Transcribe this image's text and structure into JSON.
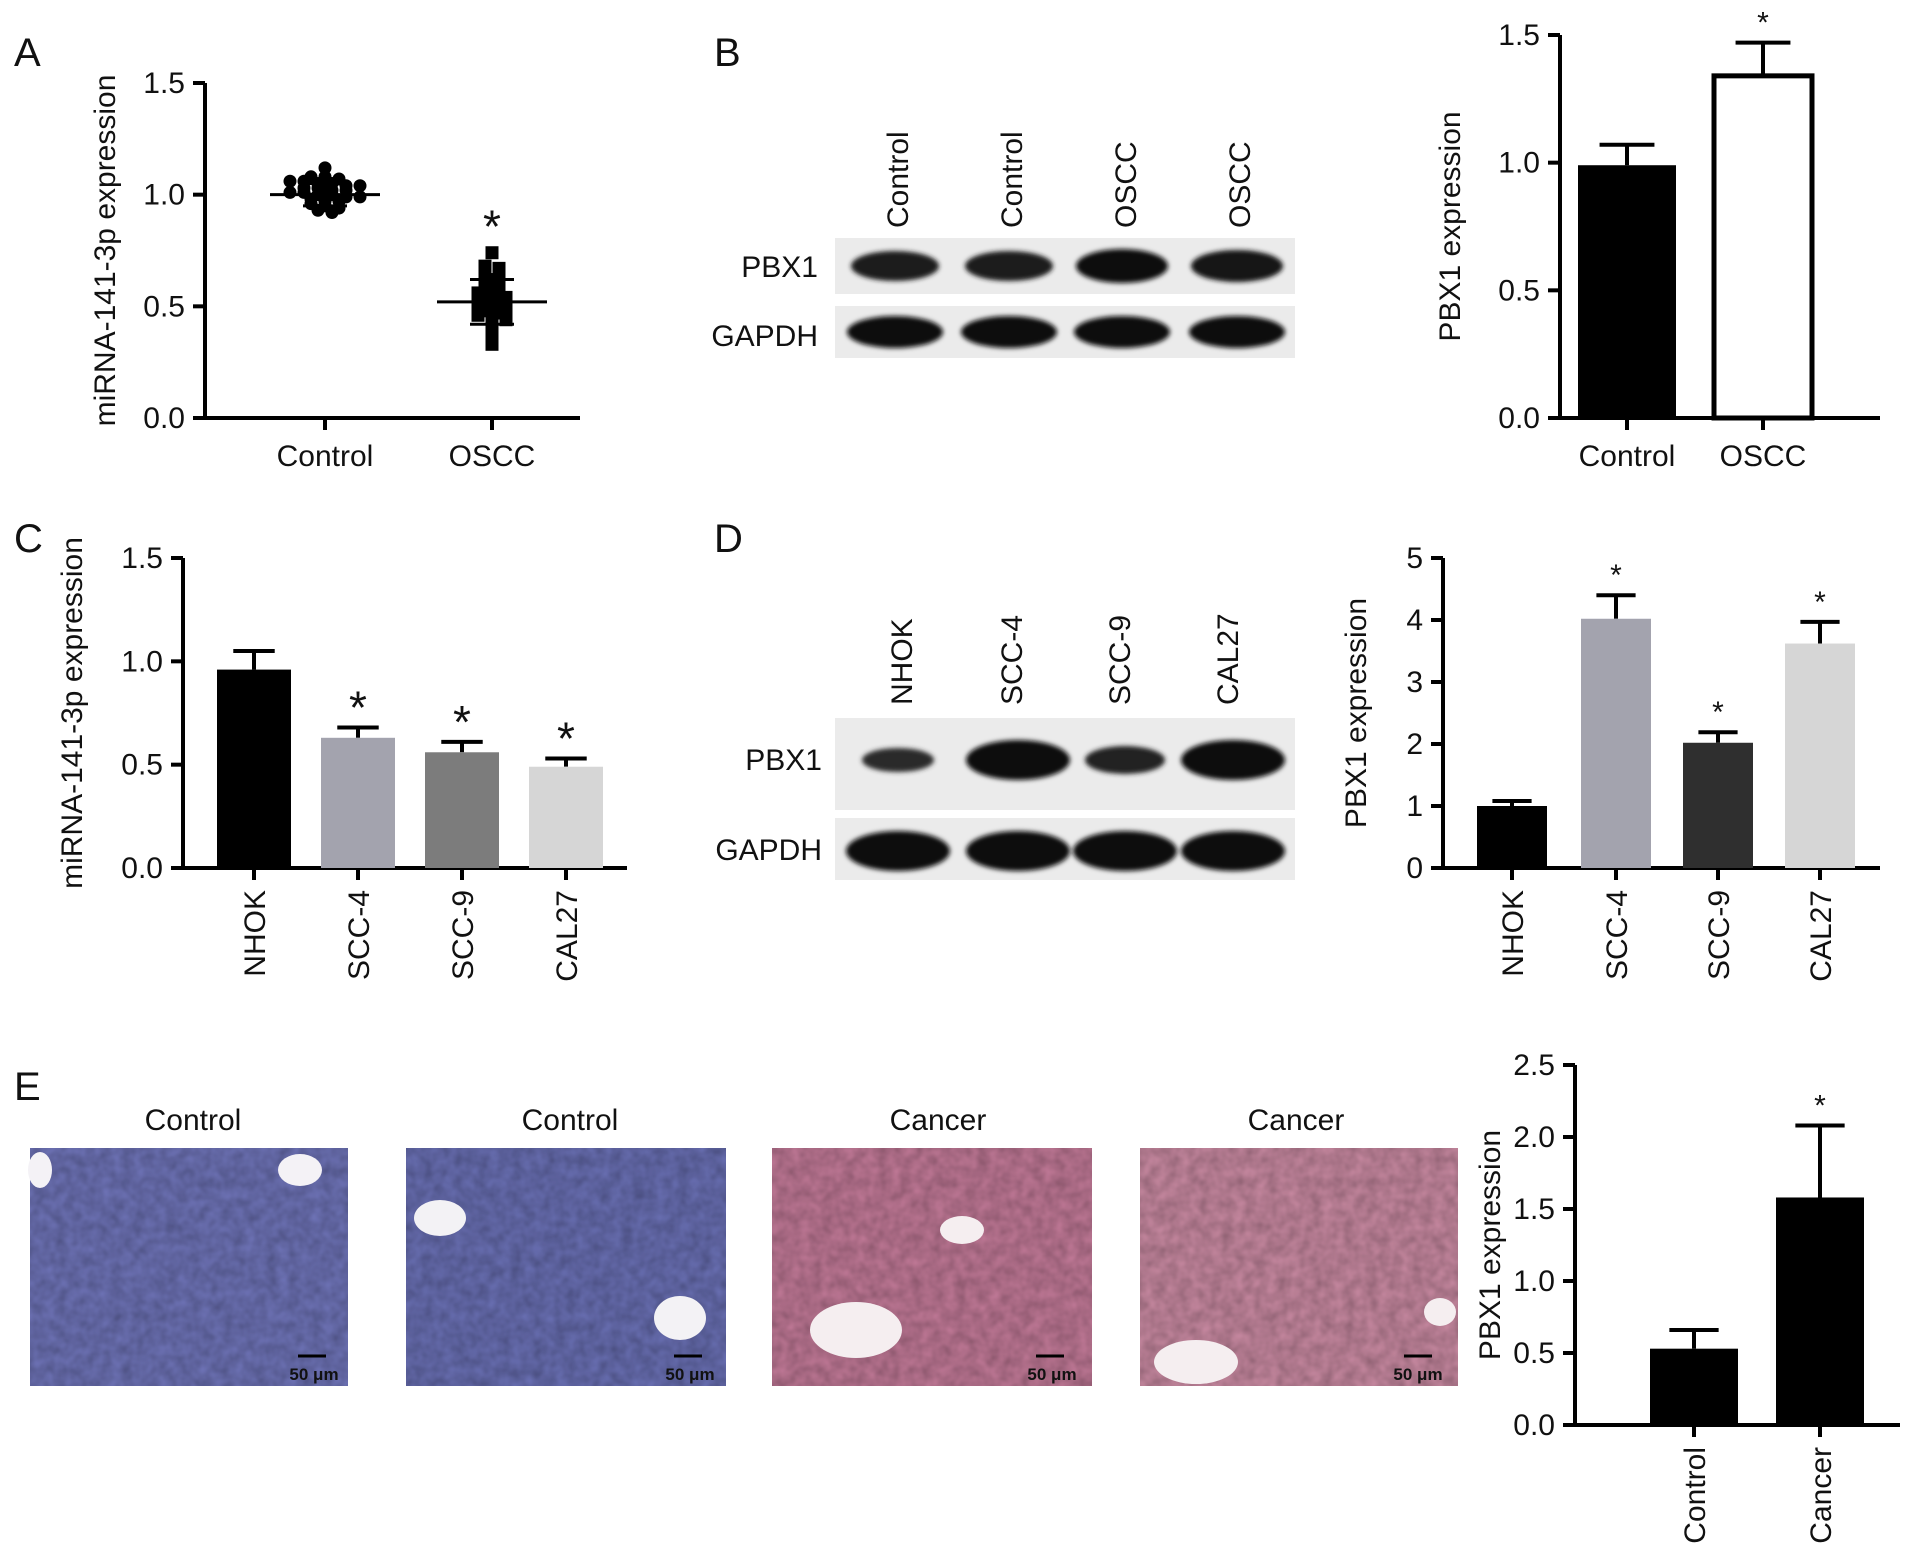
{
  "panel_letters": [
    "A",
    "B",
    "C",
    "D",
    "E"
  ],
  "blots": {
    "B": {
      "lanes": [
        "Control",
        "Control",
        "OSCC",
        "OSCC"
      ],
      "rows": [
        "PBX1",
        "GAPDH"
      ]
    },
    "D": {
      "lanes": [
        "NHOK",
        "SCC-4",
        "SCC-9",
        "CAL27"
      ],
      "rows": [
        "PBX1",
        "GAPDH"
      ]
    }
  },
  "histology": {
    "titles": [
      "Control",
      "Control",
      "Cancer",
      "Cancer"
    ],
    "scale_bar": "50 μm",
    "stain_colors": [
      "#6f74b8",
      "#6a70b4",
      "#c27a98",
      "#c98aa2"
    ]
  },
  "chart_data": [
    {
      "panel": "A",
      "type": "scatter",
      "title": "",
      "xlabel": "",
      "ylabel": "miRNA-141-3p expression",
      "categories": [
        "Control",
        "OSCC"
      ],
      "ylim": [
        0,
        1.5
      ],
      "yticks": [
        "0.0",
        "0.5",
        "1.0",
        "1.5"
      ],
      "series": [
        {
          "category": "Control",
          "mean": 1.0,
          "sd": 0.05,
          "values": [
            1.12,
            1.08,
            1.08,
            1.07,
            1.06,
            1.06,
            1.05,
            1.05,
            1.04,
            1.04,
            1.03,
            1.03,
            1.02,
            1.02,
            1.01,
            1.01,
            1.0,
            1.0,
            0.99,
            0.99,
            0.98,
            0.97,
            0.97,
            0.96,
            0.95,
            0.94,
            0.93,
            0.92
          ]
        },
        {
          "category": "OSCC",
          "mean": 0.52,
          "sd": 0.1,
          "values": [
            0.74,
            0.68,
            0.67,
            0.66,
            0.64,
            0.62,
            0.61,
            0.6,
            0.58,
            0.57,
            0.56,
            0.55,
            0.54,
            0.53,
            0.52,
            0.51,
            0.5,
            0.49,
            0.48,
            0.47,
            0.46,
            0.45,
            0.44,
            0.42,
            0.41,
            0.38,
            0.36,
            0.33
          ]
        }
      ],
      "significance": [
        "",
        "*"
      ],
      "marker_colors": [
        "#000000",
        "#000000"
      ]
    },
    {
      "panel": "B",
      "type": "bar",
      "title": "",
      "xlabel": "",
      "ylabel": "PBX1 expression",
      "categories": [
        "Control",
        "OSCC"
      ],
      "values": [
        0.99,
        1.34
      ],
      "errors": [
        0.08,
        0.13
      ],
      "ylim": [
        0,
        1.5
      ],
      "yticks": [
        "0.0",
        "0.5",
        "1.0",
        "1.5"
      ],
      "significance": [
        "",
        "*"
      ],
      "colors": [
        "#000000",
        "#ffffff"
      ]
    },
    {
      "panel": "C",
      "type": "bar",
      "title": "",
      "xlabel": "",
      "ylabel": "miRNA-141-3p expression",
      "categories": [
        "NHOK",
        "SCC-4",
        "SCC-9",
        "CAL27"
      ],
      "values": [
        0.96,
        0.63,
        0.56,
        0.49
      ],
      "errors": [
        0.09,
        0.05,
        0.05,
        0.04
      ],
      "ylim": [
        0,
        1.5
      ],
      "yticks": [
        "0.0",
        "0.5",
        "1.0",
        "1.5"
      ],
      "significance": [
        "",
        "*",
        "*",
        "*"
      ],
      "colors": [
        "#000000",
        "#a3a3ae",
        "#7c7c7c",
        "#d6d6d6"
      ]
    },
    {
      "panel": "D",
      "type": "bar",
      "title": "",
      "xlabel": "",
      "ylabel": "PBX1 expression",
      "categories": [
        "NHOK",
        "SCC-4",
        "SCC-9",
        "CAL27"
      ],
      "values": [
        1.0,
        4.02,
        2.02,
        3.62
      ],
      "errors": [
        0.08,
        0.38,
        0.17,
        0.35
      ],
      "ylim": [
        0,
        5
      ],
      "yticks": [
        "0",
        "1",
        "2",
        "3",
        "4",
        "5"
      ],
      "significance": [
        "",
        "*",
        "*",
        "*"
      ],
      "colors": [
        "#000000",
        "#a3a3ae",
        "#2f2f2f",
        "#d6d6d6"
      ]
    },
    {
      "panel": "E",
      "type": "bar",
      "title": "",
      "xlabel": "",
      "ylabel": "PBX1 expression",
      "categories": [
        "Control",
        "Cancer"
      ],
      "values": [
        0.53,
        1.58
      ],
      "errors": [
        0.13,
        0.5
      ],
      "ylim": [
        0,
        2.5
      ],
      "yticks": [
        "0.0",
        "0.5",
        "1.0",
        "1.5",
        "2.0",
        "2.5"
      ],
      "significance": [
        "",
        "*"
      ],
      "colors": [
        "#000000",
        "#000000"
      ]
    }
  ]
}
